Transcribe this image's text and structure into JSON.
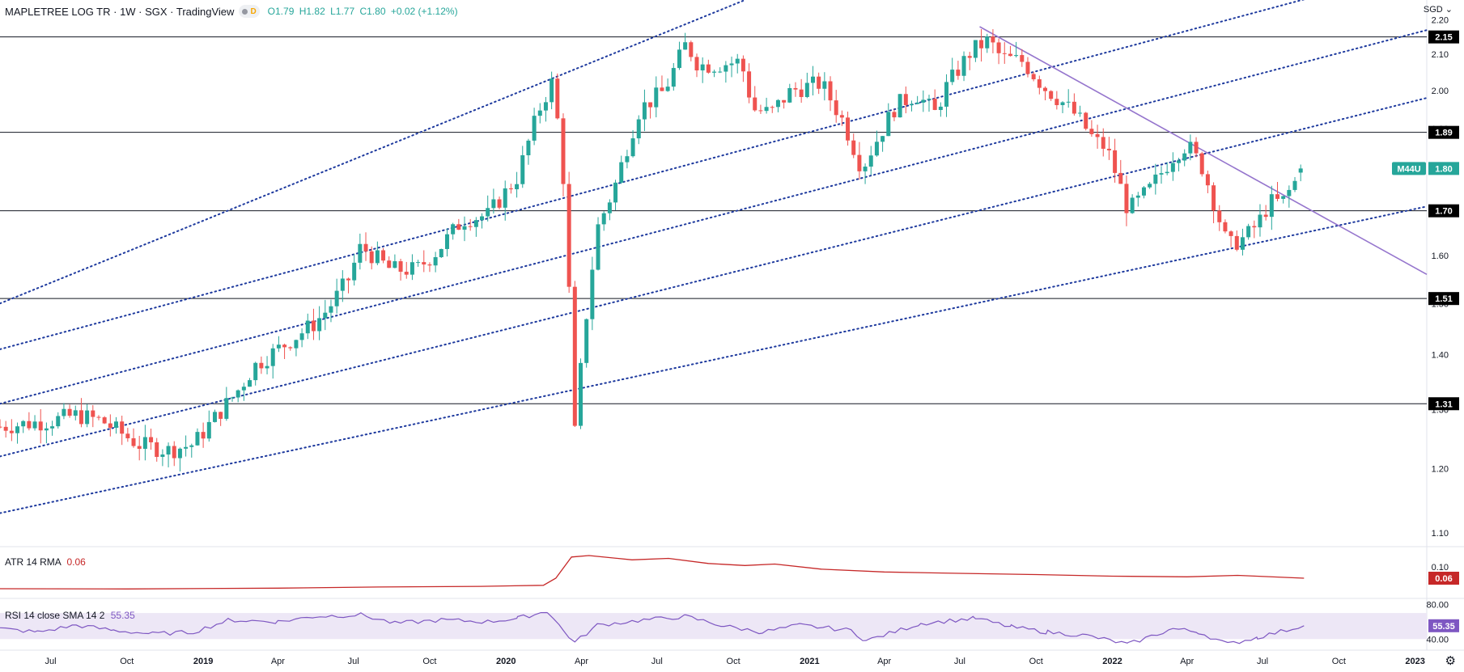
{
  "header": {
    "title": "MAPLETREE LOG TR · 1W · SGX · TradingView",
    "badge_letter": "D",
    "ohlc": {
      "open": "O1.79",
      "high": "H1.82",
      "low": "L1.77",
      "close": "C1.80",
      "change": "+0.02 (+1.12%)"
    }
  },
  "currency_label": "SGD",
  "settings_icon": "gear-icon",
  "colors": {
    "up": "#26a69a",
    "down": "#ef5350",
    "channel": "#1e3a9e",
    "trendline": "#9575cd",
    "atr": "#c62828",
    "rsi": "#7e57c2",
    "rsi_band": "#ede7f6"
  },
  "chart_data": [
    {
      "type": "candlestick",
      "title": "MAPLETREE LOG TR",
      "y_scale": "log",
      "y_ticks": [
        "2.20",
        "2.10",
        "2.00",
        "1.90",
        "1.80",
        "1.70",
        "1.60",
        "1.50",
        "1.40",
        "1.30",
        "1.20",
        "1.10"
      ],
      "x_ticks": [
        "Jul",
        "Oct",
        "2019",
        "Apr",
        "Jul",
        "Oct",
        "2020",
        "Apr",
        "Jul",
        "Oct",
        "2021",
        "Apr",
        "Jul",
        "Oct",
        "2022",
        "Apr",
        "Jul",
        "Oct",
        "2023"
      ],
      "x_range": [
        "2018-05-01",
        "2023-01-15"
      ],
      "y_range": [
        1.08,
        2.26
      ],
      "horizontal_levels": [
        2.15,
        1.89,
        1.7,
        1.51,
        1.31
      ],
      "last_price": {
        "label": "M44U",
        "value": "1.80"
      },
      "channel_lines": [
        {
          "from": [
            "2018-05-01",
            1.5
          ],
          "to": [
            "2020-10-15",
            2.26
          ]
        },
        {
          "from": [
            "2018-05-01",
            1.41
          ],
          "to": [
            "2022-09-01",
            2.27
          ]
        },
        {
          "from": [
            "2018-05-01",
            1.31
          ],
          "to": [
            "2023-01-15",
            2.17
          ]
        },
        {
          "from": [
            "2018-05-01",
            1.22
          ],
          "to": [
            "2023-01-15",
            1.98
          ]
        },
        {
          "from": [
            "2018-05-01",
            1.13
          ],
          "to": [
            "2023-01-15",
            1.71
          ]
        }
      ],
      "trendline": {
        "from": [
          "2021-07-25",
          2.18
        ],
        "to": [
          "2023-01-15",
          1.56
        ]
      },
      "ohlc_anchors": [
        [
          "2018-05-01",
          1.27
        ],
        [
          "2018-07-01",
          1.28
        ],
        [
          "2018-08-01",
          1.29
        ],
        [
          "2018-09-01",
          1.28
        ],
        [
          "2018-10-15",
          1.24
        ],
        [
          "2018-11-20",
          1.23
        ],
        [
          "2018-12-20",
          1.24
        ],
        [
          "2019-02-10",
          1.33
        ],
        [
          "2019-03-05",
          1.38
        ],
        [
          "2019-04-10",
          1.42
        ],
        [
          "2019-05-15",
          1.46
        ],
        [
          "2019-06-01",
          1.49
        ],
        [
          "2019-06-25",
          1.55
        ],
        [
          "2019-07-10",
          1.62
        ],
        [
          "2019-08-15",
          1.57
        ],
        [
          "2019-09-15",
          1.57
        ],
        [
          "2019-10-10",
          1.61
        ],
        [
          "2019-11-10",
          1.68
        ],
        [
          "2019-12-10",
          1.69
        ],
        [
          "2020-01-15",
          1.78
        ],
        [
          "2020-02-10",
          1.95
        ],
        [
          "2020-02-25",
          2.02
        ],
        [
          "2020-03-08",
          1.85
        ],
        [
          "2020-03-15",
          1.6
        ],
        [
          "2020-03-24",
          1.26
        ],
        [
          "2020-04-05",
          1.45
        ],
        [
          "2020-04-20",
          1.66
        ],
        [
          "2020-05-10",
          1.75
        ],
        [
          "2020-06-10",
          1.95
        ],
        [
          "2020-07-10",
          2.0
        ],
        [
          "2020-08-05",
          2.13
        ],
        [
          "2020-08-20",
          2.07
        ],
        [
          "2020-09-10",
          2.07
        ],
        [
          "2020-10-10",
          2.08
        ],
        [
          "2020-10-25",
          1.95
        ],
        [
          "2020-11-15",
          1.94
        ],
        [
          "2020-12-10",
          2.0
        ],
        [
          "2021-01-15",
          2.02
        ],
        [
          "2021-02-10",
          1.92
        ],
        [
          "2021-03-05",
          1.8
        ],
        [
          "2021-03-15",
          1.84
        ],
        [
          "2021-04-15",
          1.96
        ],
        [
          "2021-05-10",
          1.99
        ],
        [
          "2021-06-01",
          1.94
        ],
        [
          "2021-06-15",
          2.01
        ],
        [
          "2021-07-15",
          2.11
        ],
        [
          "2021-08-05",
          2.14
        ],
        [
          "2021-08-20",
          2.09
        ],
        [
          "2021-09-15",
          2.08
        ],
        [
          "2021-10-10",
          2.01
        ],
        [
          "2021-11-01",
          1.97
        ],
        [
          "2021-11-20",
          1.93
        ],
        [
          "2021-12-10",
          1.87
        ],
        [
          "2021-12-25",
          1.85
        ],
        [
          "2022-01-10",
          1.76
        ],
        [
          "2022-01-20",
          1.7
        ],
        [
          "2022-02-15",
          1.75
        ],
        [
          "2022-03-15",
          1.83
        ],
        [
          "2022-04-01",
          1.86
        ],
        [
          "2022-04-20",
          1.8
        ],
        [
          "2022-05-10",
          1.68
        ],
        [
          "2022-05-20",
          1.62
        ],
        [
          "2022-06-10",
          1.64
        ],
        [
          "2022-06-25",
          1.67
        ],
        [
          "2022-07-10",
          1.72
        ],
        [
          "2022-07-25",
          1.72
        ],
        [
          "2022-08-10",
          1.77
        ],
        [
          "2022-08-20",
          1.8
        ]
      ]
    },
    {
      "type": "line",
      "title": "ATR 14 RMA",
      "value": "0.06",
      "y_ticks": [
        "0.10"
      ],
      "series": [
        {
          "name": "ATR 14 RMA",
          "points": [
            [
              "2018-05-01",
              0.023
            ],
            [
              "2018-10-01",
              0.022
            ],
            [
              "2019-04-01",
              0.025
            ],
            [
              "2019-08-01",
              0.029
            ],
            [
              "2019-12-01",
              0.031
            ],
            [
              "2020-02-15",
              0.035
            ],
            [
              "2020-03-01",
              0.06
            ],
            [
              "2020-03-20",
              0.135
            ],
            [
              "2020-04-10",
              0.14
            ],
            [
              "2020-06-01",
              0.125
            ],
            [
              "2020-07-15",
              0.13
            ],
            [
              "2020-09-01",
              0.112
            ],
            [
              "2020-10-15",
              0.105
            ],
            [
              "2020-11-20",
              0.11
            ],
            [
              "2021-01-15",
              0.092
            ],
            [
              "2021-04-01",
              0.082
            ],
            [
              "2021-07-01",
              0.077
            ],
            [
              "2021-10-01",
              0.073
            ],
            [
              "2022-01-01",
              0.067
            ],
            [
              "2022-04-01",
              0.065
            ],
            [
              "2022-06-01",
              0.07
            ],
            [
              "2022-08-20",
              0.06
            ]
          ]
        }
      ]
    },
    {
      "type": "line",
      "title": "RSI 14 close SMA 14 2",
      "value": "55.35",
      "y_ticks": [
        "80.00",
        "40.00"
      ],
      "band": [
        40,
        70
      ],
      "series": [
        {
          "name": "RSI 14 close SMA 14 2",
          "points": [
            [
              "2018-05-01",
              52
            ],
            [
              "2018-06-15",
              48
            ],
            [
              "2018-08-01",
              56
            ],
            [
              "2018-09-15",
              50
            ],
            [
              "2018-11-01",
              46
            ],
            [
              "2018-12-20",
              48
            ],
            [
              "2019-02-01",
              62
            ],
            [
              "2019-04-01",
              60
            ],
            [
              "2019-05-15",
              66
            ],
            [
              "2019-07-10",
              68
            ],
            [
              "2019-08-20",
              58
            ],
            [
              "2019-10-15",
              62
            ],
            [
              "2019-12-10",
              60
            ],
            [
              "2020-01-15",
              64
            ],
            [
              "2020-02-20",
              72
            ],
            [
              "2020-03-10",
              50
            ],
            [
              "2020-03-24",
              36
            ],
            [
              "2020-04-20",
              56
            ],
            [
              "2020-06-15",
              62
            ],
            [
              "2020-08-05",
              66
            ],
            [
              "2020-09-20",
              55
            ],
            [
              "2020-11-05",
              48
            ],
            [
              "2020-12-20",
              56
            ],
            [
              "2021-02-20",
              50
            ],
            [
              "2021-03-10",
              38
            ],
            [
              "2021-05-15",
              58
            ],
            [
              "2021-07-20",
              64
            ],
            [
              "2021-09-01",
              54
            ],
            [
              "2021-10-15",
              48
            ],
            [
              "2021-12-01",
              44
            ],
            [
              "2022-01-20",
              34
            ],
            [
              "2022-03-15",
              52
            ],
            [
              "2022-04-15",
              48
            ],
            [
              "2022-05-20",
              34
            ],
            [
              "2022-06-25",
              42
            ],
            [
              "2022-08-20",
              55.35
            ]
          ]
        }
      ]
    }
  ]
}
